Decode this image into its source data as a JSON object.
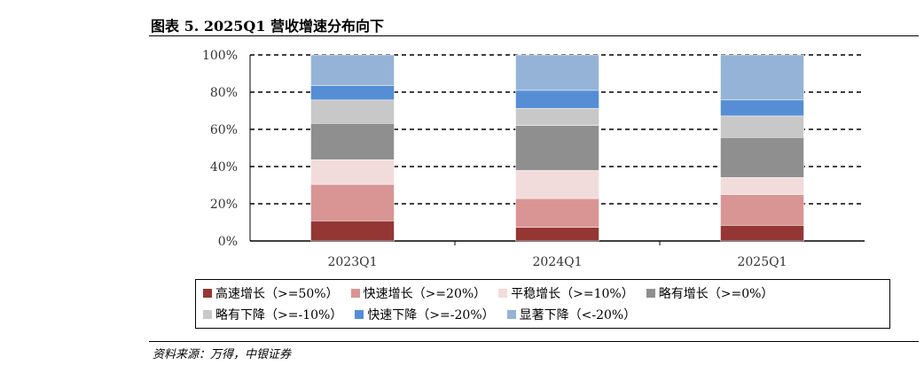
{
  "title": "图表 5. 2025Q1 营收增速分布向下",
  "source": "资料来源：万得，中银证券",
  "chart_data": {
    "type": "bar",
    "stacked": true,
    "categories": [
      "2023Q1",
      "2024Q1",
      "2025Q1"
    ],
    "ylim": [
      0,
      100
    ],
    "yticks": [
      "0%",
      "20%",
      "40%",
      "60%",
      "80%",
      "100%"
    ],
    "grid": true,
    "legend_position": "bottom",
    "series": [
      {
        "name": "高速增长（>=50%）",
        "color": "#943634",
        "values": [
          10.8,
          7.3,
          8.4
        ]
      },
      {
        "name": "快速增长（>=20%）",
        "color": "#d99594",
        "values": [
          19.6,
          15.5,
          16.5
        ]
      },
      {
        "name": "平稳增长（>=10%）",
        "color": "#f2dcdb",
        "values": [
          13.3,
          15.1,
          9.2
        ]
      },
      {
        "name": "略有增长（>=0%）",
        "color": "#8f8f8f",
        "values": [
          19.5,
          24.2,
          21.5
        ]
      },
      {
        "name": "略有下降（>=-10%）",
        "color": "#c8c8c8",
        "values": [
          12.6,
          9.2,
          11.6
        ]
      },
      {
        "name": "快速下降（>=-20%）",
        "color": "#558ed5",
        "values": [
          7.7,
          9.7,
          8.6
        ]
      },
      {
        "name": "显著下降（<-20%）",
        "color": "#95b3d7",
        "values": [
          16.5,
          19.0,
          24.2
        ]
      }
    ]
  }
}
